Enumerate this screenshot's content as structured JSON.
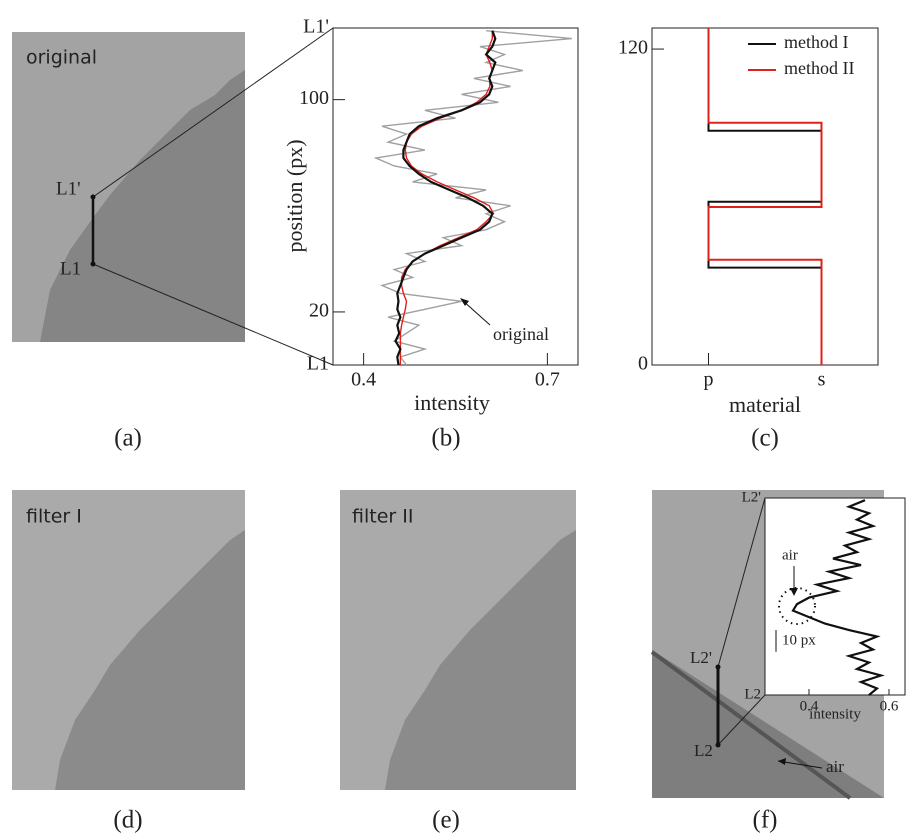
{
  "captions": [
    "(a)",
    "(b)",
    "(c)",
    "(d)",
    "(e)",
    "(f)"
  ],
  "images": {
    "a": {
      "label": "original",
      "top_marker": "L1'",
      "bottom_marker": "L1"
    },
    "d": {
      "label": "filter I"
    },
    "e": {
      "label": "filter II"
    },
    "f": {
      "top_marker": "L2'",
      "bottom_marker": "L2",
      "annotation": "air"
    }
  },
  "chart_data": [
    {
      "type": "line",
      "x_label": "intensity",
      "y_label": "position (px)",
      "xlim": [
        0.35,
        0.75
      ],
      "xticks": [
        0.4,
        0.7
      ],
      "ylim": [
        0,
        127
      ],
      "yticks": [
        {
          "value": 0,
          "label": "L1"
        },
        20,
        100,
        {
          "value": 127,
          "label": "L1'"
        }
      ],
      "annotation": "original",
      "y": [
        0,
        3,
        6,
        9,
        12,
        15,
        18,
        21,
        24,
        27,
        30,
        33,
        36,
        39,
        42,
        45,
        48,
        51,
        54,
        57,
        60,
        63,
        66,
        69,
        72,
        75,
        78,
        81,
        84,
        87,
        90,
        93,
        96,
        99,
        102,
        105,
        108,
        111,
        114,
        117,
        120,
        123,
        126
      ],
      "series": [
        {
          "color": "#a0a0a0",
          "values": [
            0.47,
            0.46,
            0.5,
            0.45,
            0.47,
            0.49,
            0.44,
            0.5,
            0.56,
            0.46,
            0.43,
            0.48,
            0.45,
            0.5,
            0.47,
            0.56,
            0.53,
            0.6,
            0.63,
            0.6,
            0.64,
            0.55,
            0.6,
            0.48,
            0.52,
            0.45,
            0.42,
            0.5,
            0.44,
            0.47,
            0.43,
            0.55,
            0.5,
            0.62,
            0.56,
            0.64,
            0.58,
            0.66,
            0.6,
            0.63,
            0.59,
            0.74,
            0.6
          ]
        },
        {
          "color": "#e0201b",
          "values": [
            0.46,
            0.46,
            0.46,
            0.46,
            0.46,
            0.462,
            0.465,
            0.468,
            0.47,
            0.465,
            0.462,
            0.462,
            0.468,
            0.48,
            0.5,
            0.525,
            0.555,
            0.585,
            0.6,
            0.612,
            0.605,
            0.58,
            0.55,
            0.52,
            0.495,
            0.478,
            0.47,
            0.468,
            0.47,
            0.478,
            0.495,
            0.525,
            0.56,
            0.585,
            0.6,
            0.606,
            0.606,
            0.61,
            0.606,
            0.6,
            0.605,
            0.61,
            0.61
          ]
        },
        {
          "color": "#111111",
          "values": [
            0.457,
            0.455,
            0.46,
            0.452,
            0.458,
            0.455,
            0.46,
            0.455,
            0.457,
            0.455,
            0.46,
            0.465,
            0.47,
            0.48,
            0.5,
            0.53,
            0.56,
            0.59,
            0.605,
            0.61,
            0.595,
            0.57,
            0.54,
            0.51,
            0.49,
            0.475,
            0.465,
            0.465,
            0.47,
            0.475,
            0.49,
            0.52,
            0.56,
            0.59,
            0.605,
            0.61,
            0.605,
            0.61,
            0.615,
            0.6,
            0.61,
            0.615,
            0.61
          ]
        }
      ]
    },
    {
      "type": "step",
      "x_label": "material",
      "categories": [
        "p",
        "s"
      ],
      "ylim": [
        0,
        128
      ],
      "yticks": [
        0,
        120
      ],
      "legend": "upper right",
      "series": [
        {
          "name": "method I",
          "color": "#111111",
          "positions": [
            0,
            37,
            37,
            62,
            62,
            89,
            89,
            128
          ],
          "materials": [
            "s",
            "s",
            "p",
            "p",
            "s",
            "s",
            "p",
            "p"
          ]
        },
        {
          "name": "method II",
          "color": "#e0201b",
          "positions": [
            0,
            40,
            40,
            60,
            60,
            92,
            92,
            128
          ],
          "materials": [
            "s",
            "s",
            "p",
            "p",
            "s",
            "s",
            "p",
            "p"
          ]
        }
      ]
    },
    {
      "type": "line",
      "x_label": "intensity",
      "xlim": [
        0.29,
        0.64
      ],
      "xticks": [
        0.4,
        0.6
      ],
      "ylim": [
        0,
        91
      ],
      "yticks": [
        {
          "value": 0,
          "label": "L2"
        },
        {
          "value": 91,
          "label": "L2'"
        }
      ],
      "annotation": "air",
      "scale_bar": {
        "value": 10,
        "label": "10 px"
      },
      "y": [
        0,
        3,
        6,
        9,
        12,
        15,
        18,
        21,
        24,
        27,
        30,
        33,
        36,
        39,
        42,
        45,
        48,
        51,
        54,
        57,
        60,
        63,
        66,
        69,
        72,
        75,
        78,
        81,
        84,
        87,
        90
      ],
      "series": [
        {
          "color": "#111111",
          "values": [
            0.55,
            0.57,
            0.53,
            0.58,
            0.52,
            0.55,
            0.5,
            0.56,
            0.53,
            0.57,
            0.5,
            0.44,
            0.4,
            0.36,
            0.37,
            0.4,
            0.47,
            0.42,
            0.5,
            0.45,
            0.53,
            0.46,
            0.52,
            0.49,
            0.55,
            0.5,
            0.56,
            0.52,
            0.55,
            0.5,
            0.54
          ]
        }
      ]
    }
  ]
}
